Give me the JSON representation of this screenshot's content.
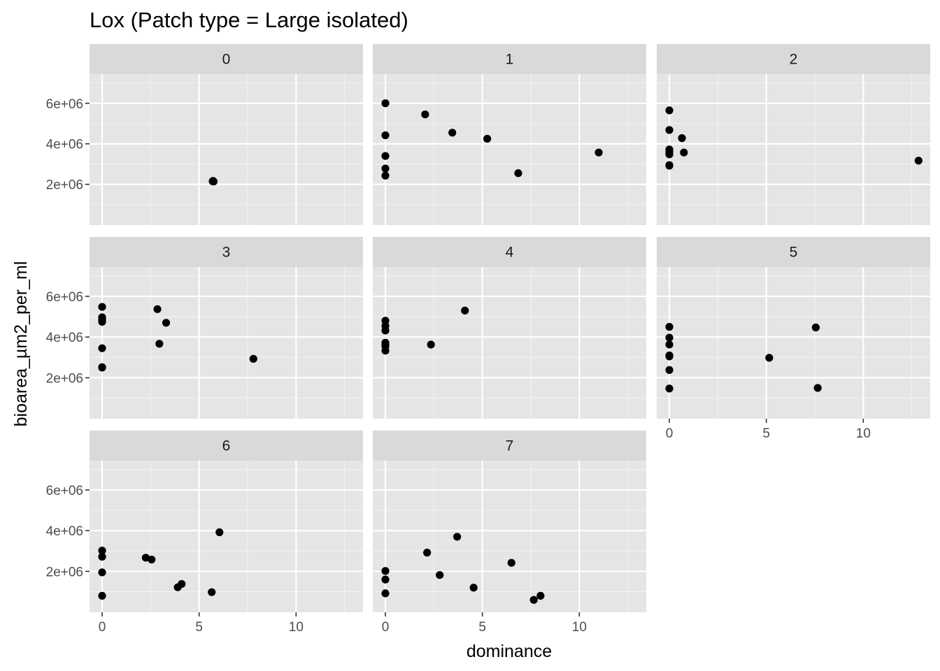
{
  "chart_data": {
    "type": "scatter",
    "title": "Lox (Patch type = Large isolated)",
    "xlabel": "dominance",
    "ylabel": "bioarea_µm2_per_ml",
    "xlim": [
      -0.65,
      13.45
    ],
    "ylim": [
      -0.01,
      7.44
    ],
    "y_unit_multiplier": 1000000,
    "x_ticks": [
      0,
      5,
      10
    ],
    "x_tick_labels": [
      "0",
      "5",
      "10"
    ],
    "y_ticks": [
      2,
      4,
      6
    ],
    "y_tick_labels": [
      "2e+06",
      "4e+06",
      "6e+06"
    ],
    "grid": true,
    "point_color": "#000000",
    "panel_background": "#e5e5e5",
    "strip_background": "#d9d9d9",
    "panels": [
      {
        "label": "0",
        "points": [
          [
            5.7,
            2.15
          ],
          [
            5.72,
            2.17
          ],
          [
            5.75,
            2.14
          ]
        ]
      },
      {
        "label": "1",
        "points": [
          [
            0,
            6.0
          ],
          [
            2.05,
            5.45
          ],
          [
            3.45,
            4.55
          ],
          [
            0,
            4.42
          ],
          [
            5.25,
            4.25
          ],
          [
            11.0,
            3.57
          ],
          [
            0,
            3.4
          ],
          [
            0,
            2.78
          ],
          [
            6.85,
            2.55
          ],
          [
            0,
            2.43
          ]
        ]
      },
      {
        "label": "2",
        "points": [
          [
            0,
            5.65
          ],
          [
            0,
            4.68
          ],
          [
            0.65,
            4.28
          ],
          [
            0,
            3.72
          ],
          [
            0,
            3.6
          ],
          [
            0.75,
            3.57
          ],
          [
            0,
            3.48
          ],
          [
            0,
            2.95
          ],
          [
            0,
            2.92
          ],
          [
            12.85,
            3.17
          ]
        ]
      },
      {
        "label": "3",
        "points": [
          [
            0,
            5.48
          ],
          [
            2.85,
            5.37
          ],
          [
            0,
            4.97
          ],
          [
            0,
            4.85
          ],
          [
            0,
            4.75
          ],
          [
            3.3,
            4.7
          ],
          [
            2.95,
            3.67
          ],
          [
            0,
            3.45
          ],
          [
            7.8,
            2.93
          ],
          [
            0,
            2.52
          ],
          [
            0,
            2.5
          ]
        ]
      },
      {
        "label": "4",
        "points": [
          [
            0,
            4.8
          ],
          [
            0,
            4.55
          ],
          [
            0,
            4.32
          ],
          [
            0,
            3.72
          ],
          [
            0,
            3.62
          ],
          [
            0,
            3.55
          ],
          [
            0,
            3.33
          ],
          [
            4.1,
            5.3
          ],
          [
            2.35,
            3.63
          ]
        ]
      },
      {
        "label": "5",
        "points": [
          [
            0,
            4.5
          ],
          [
            0,
            3.97
          ],
          [
            0,
            3.63
          ],
          [
            0,
            3.1
          ],
          [
            0,
            3.05
          ],
          [
            0,
            2.38
          ],
          [
            0,
            1.47
          ],
          [
            7.55,
            4.47
          ],
          [
            5.15,
            2.98
          ],
          [
            7.65,
            1.5
          ]
        ]
      },
      {
        "label": "6",
        "points": [
          [
            0,
            3.02
          ],
          [
            0,
            2.72
          ],
          [
            0,
            1.95
          ],
          [
            0,
            0.8
          ],
          [
            2.25,
            2.67
          ],
          [
            2.55,
            2.58
          ],
          [
            6.05,
            3.92
          ],
          [
            4.1,
            1.38
          ],
          [
            3.9,
            1.22
          ],
          [
            5.65,
            0.98
          ]
        ]
      },
      {
        "label": "7",
        "points": [
          [
            0,
            2.02
          ],
          [
            0,
            1.6
          ],
          [
            0,
            0.92
          ],
          [
            2.15,
            2.92
          ],
          [
            3.7,
            3.7
          ],
          [
            2.8,
            1.82
          ],
          [
            6.5,
            2.42
          ],
          [
            4.55,
            1.2
          ],
          [
            8.0,
            0.8
          ],
          [
            7.65,
            0.6
          ]
        ]
      }
    ]
  }
}
